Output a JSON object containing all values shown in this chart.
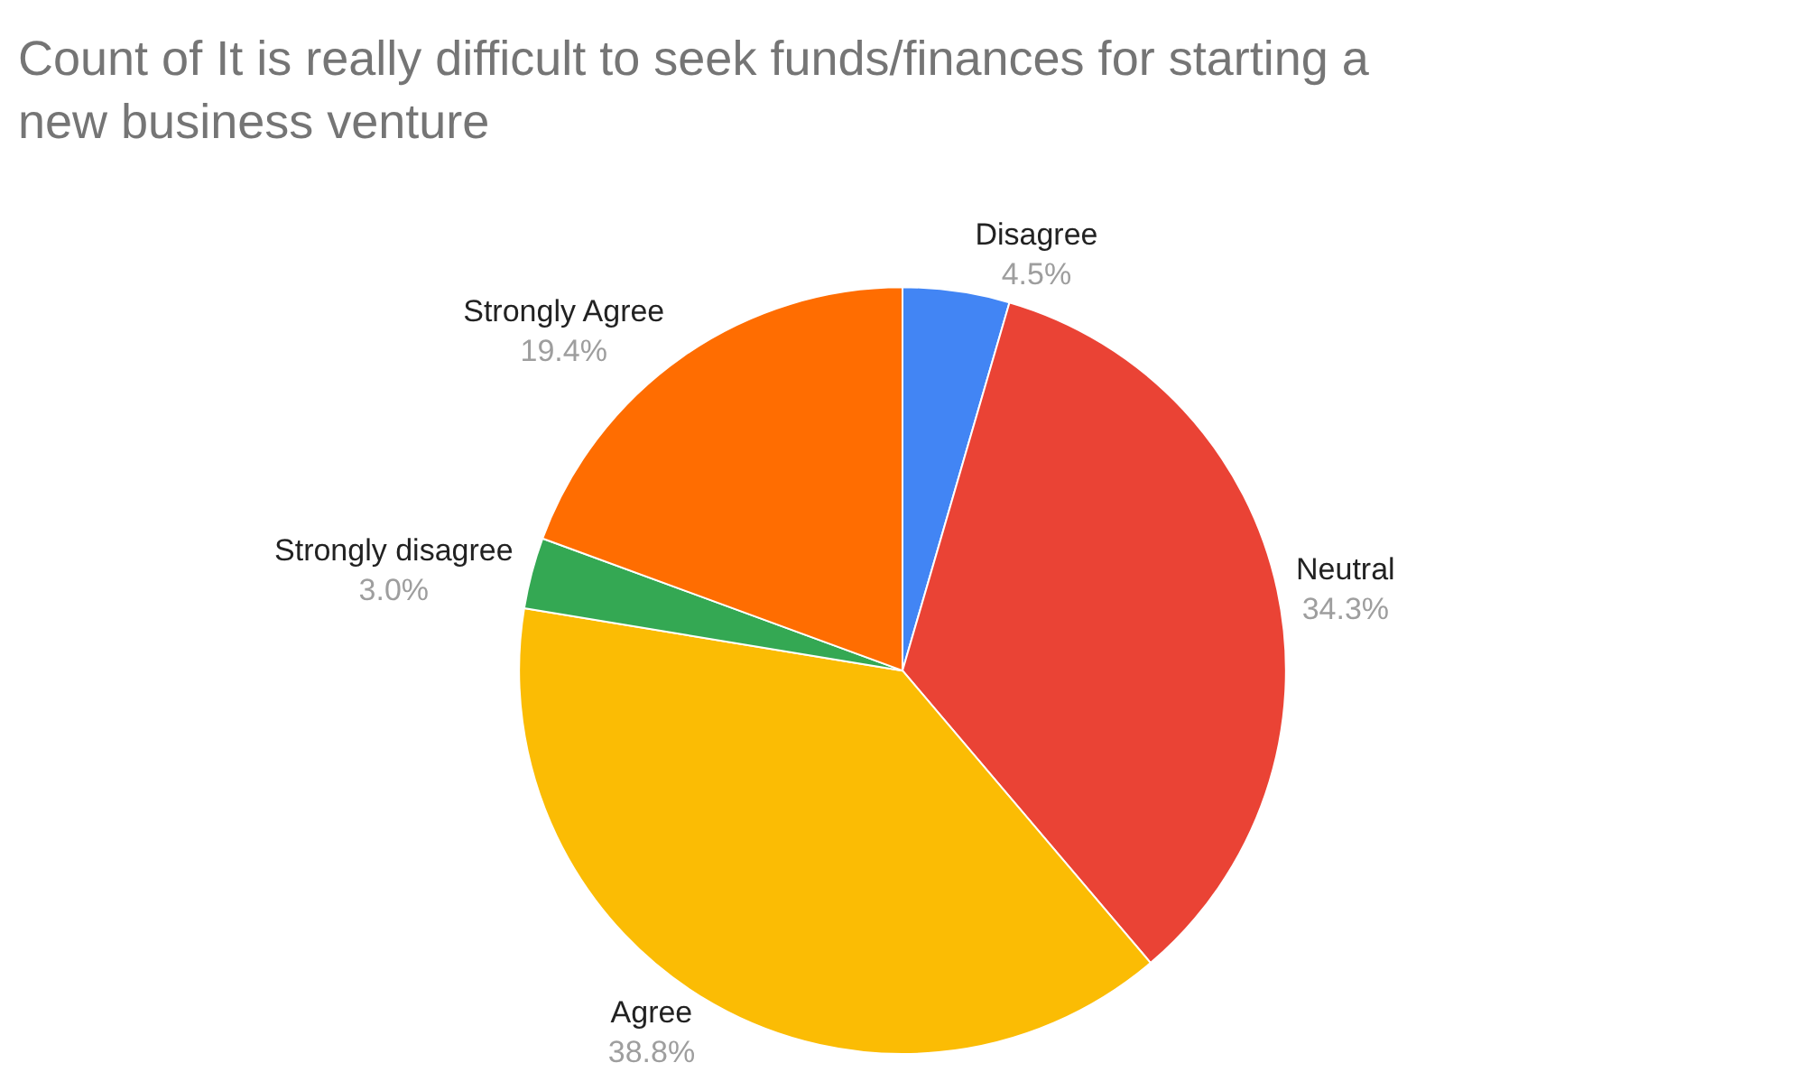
{
  "chart_data": {
    "type": "pie",
    "title": "Count of It is really difficult to seek funds/finances for starting a new business venture",
    "categories": [
      "Disagree",
      "Neutral",
      "Agree",
      "Strongly disagree",
      "Strongly Agree"
    ],
    "values": [
      4.5,
      34.3,
      38.8,
      3.0,
      19.4
    ],
    "value_labels": [
      "4.5%",
      "34.3%",
      "38.8%",
      "3.0%",
      "19.4%"
    ],
    "colors": [
      "#4285f4",
      "#ea4335",
      "#fbbc04",
      "#34a853",
      "#ff6d01"
    ],
    "legend": false
  }
}
